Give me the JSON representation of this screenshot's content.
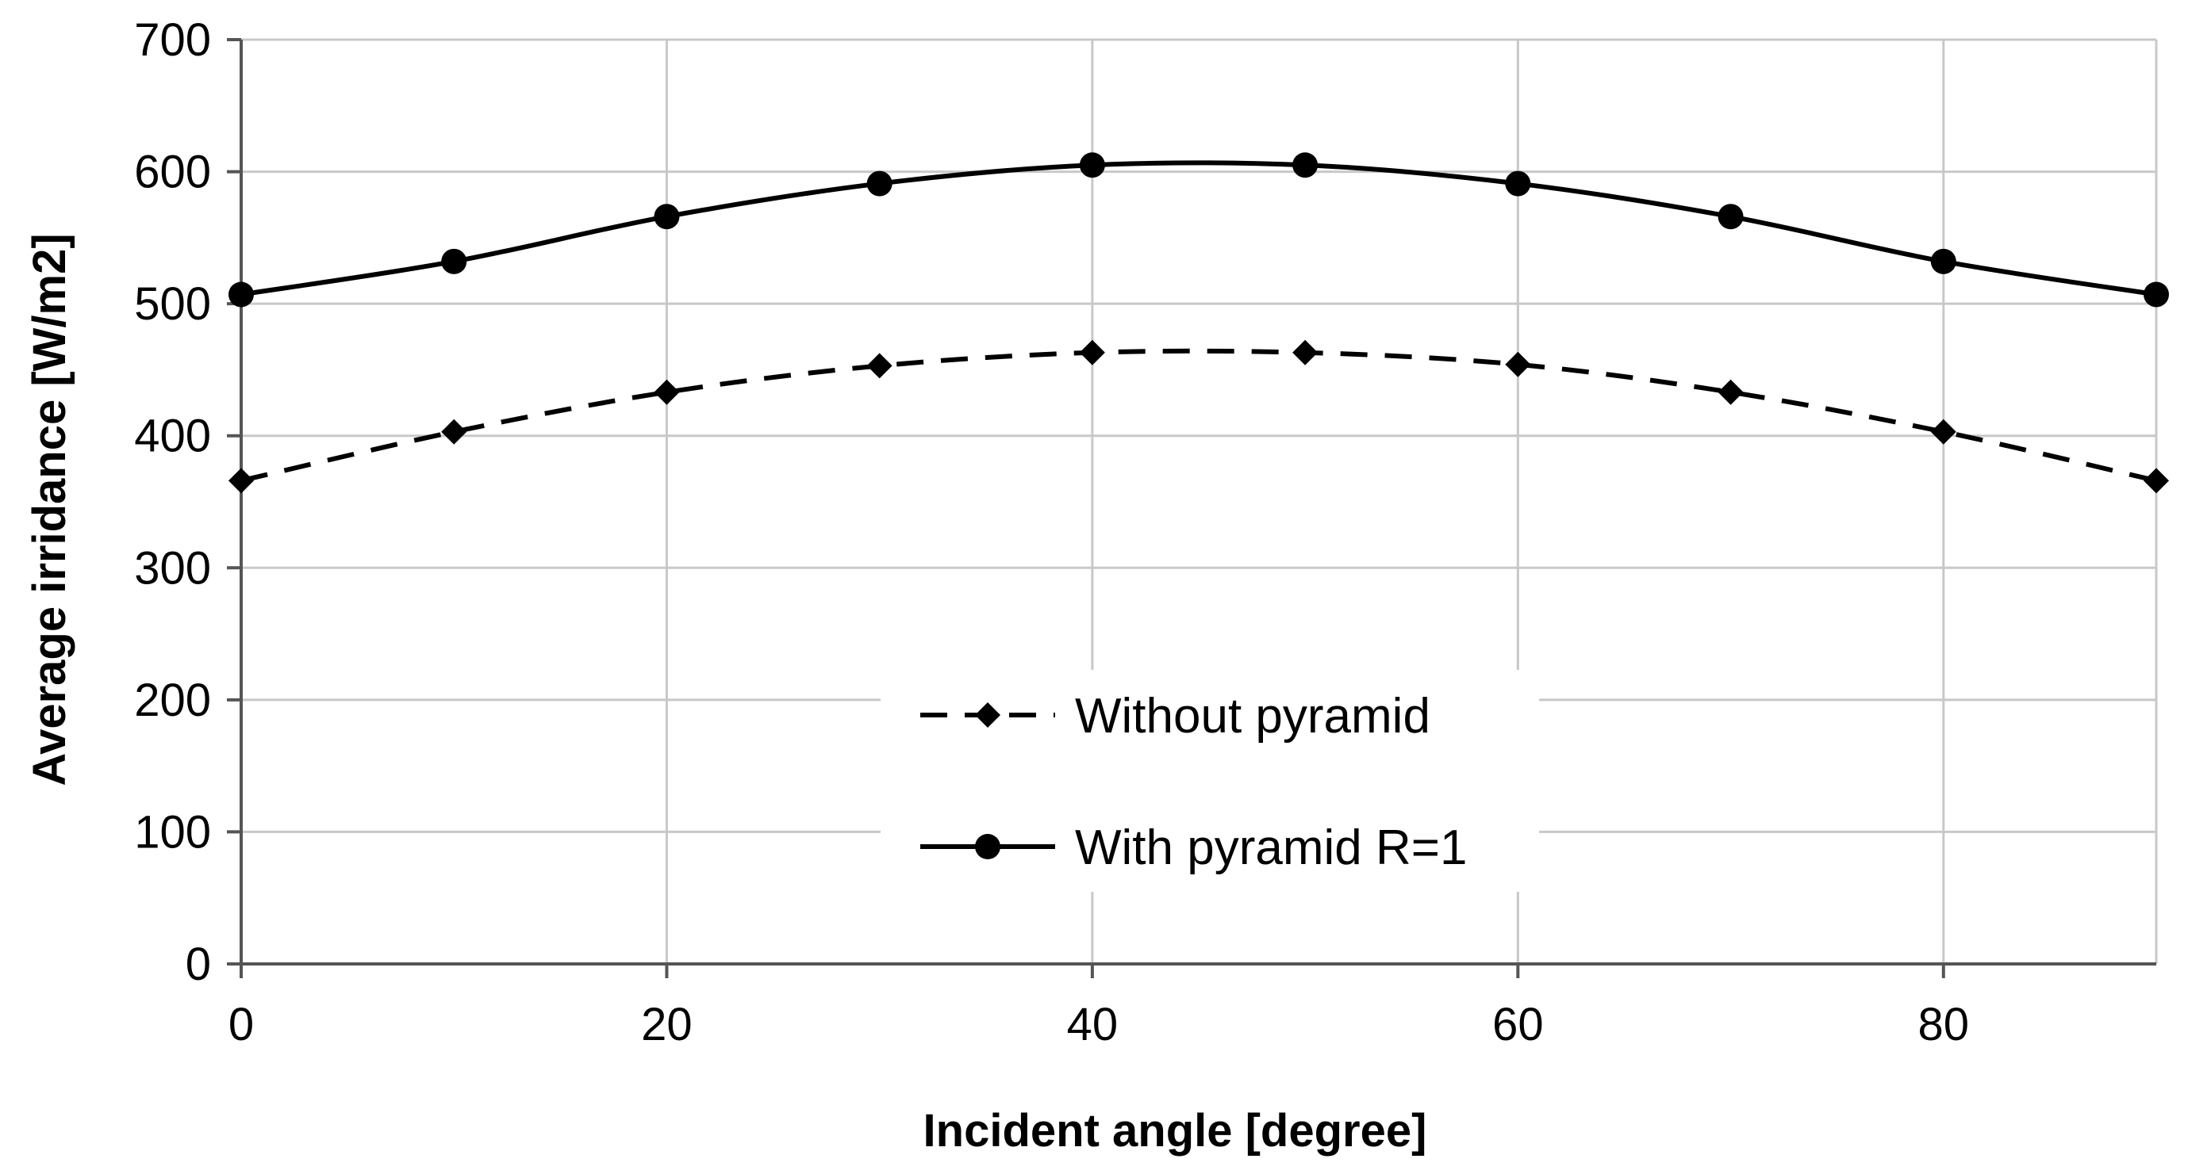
{
  "chart_data": {
    "type": "line",
    "title": "",
    "xlabel": "Incident angle [degree]",
    "ylabel": "Average irridance [W/m2]",
    "xlim": [
      0,
      90
    ],
    "ylim": [
      0,
      700
    ],
    "x_ticks": [
      0,
      20,
      40,
      60,
      80
    ],
    "y_ticks": [
      0,
      100,
      200,
      300,
      400,
      500,
      600,
      700
    ],
    "x_tick_labels": [
      "0",
      "20",
      "40",
      "60",
      "80"
    ],
    "y_tick_labels": [
      "0",
      "100",
      "200",
      "300",
      "400",
      "500",
      "600",
      "700"
    ],
    "x_gridlines": [
      0,
      20,
      40,
      60,
      80,
      90
    ],
    "grid": true,
    "legend_position": "center",
    "series": [
      {
        "name": "Without pyramid",
        "line": "dashed",
        "marker": "diamond",
        "x": [
          0,
          10,
          20,
          30,
          40,
          50,
          60,
          70,
          80,
          90
        ],
        "values": [
          366,
          403,
          433,
          453,
          463,
          463,
          454,
          433,
          403,
          366
        ]
      },
      {
        "name": "With pyramid  R=1",
        "line": "solid",
        "marker": "circle",
        "x": [
          0,
          10,
          20,
          30,
          40,
          50,
          60,
          70,
          80,
          90
        ],
        "values": [
          507,
          532,
          566,
          591,
          605,
          605,
          591,
          566,
          532,
          507
        ]
      }
    ]
  }
}
